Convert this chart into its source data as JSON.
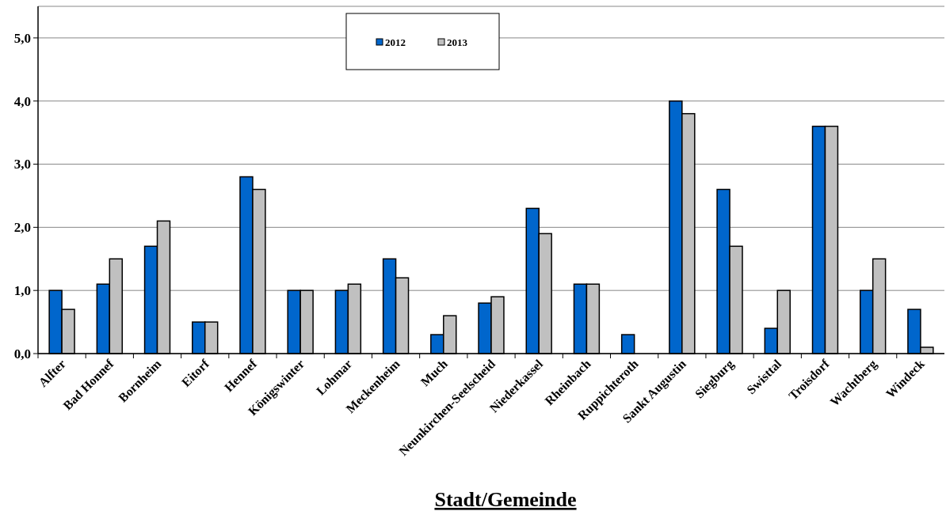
{
  "chart_data": {
    "type": "bar",
    "xlabel": "Stadt/Gemeinde",
    "categories": [
      "Alfter",
      "Bad Honnef",
      "Bornheim",
      "Eitorf",
      "Hennef",
      "Königswinter",
      "Lohmar",
      "Meckenheim",
      "Much",
      "Neunkirchen-Seelscheid",
      "Niederkassel",
      "Rheinbach",
      "Ruppichteroth",
      "Sankt Augustin",
      "Siegburg",
      "Swisttal",
      "Troisdorf",
      "Wachtberg",
      "Windeck"
    ],
    "series": [
      {
        "name": "2012",
        "color": "#0066cc",
        "values": [
          1.0,
          1.1,
          1.7,
          0.5,
          2.8,
          1.0,
          1.0,
          1.5,
          0.3,
          0.8,
          2.3,
          1.1,
          0.3,
          4.0,
          2.6,
          0.4,
          3.6,
          1.0,
          0.7
        ]
      },
      {
        "name": "2013",
        "color": "#c0c0c0",
        "values": [
          0.7,
          1.5,
          2.1,
          0.5,
          2.6,
          1.0,
          1.1,
          1.2,
          0.6,
          0.9,
          1.9,
          1.1,
          0,
          3.8,
          1.7,
          1.0,
          3.6,
          1.5,
          0.1
        ]
      }
    ],
    "ylim": [
      0,
      5.5
    ],
    "yticks": [
      {
        "value": 0,
        "label": "0,0"
      },
      {
        "value": 1,
        "label": "1,0"
      },
      {
        "value": 2,
        "label": "2,0"
      },
      {
        "value": 3,
        "label": "3,0"
      },
      {
        "value": 4,
        "label": "4,0"
      },
      {
        "value": 5,
        "label": "5,0"
      }
    ],
    "grid": "y",
    "legend": "top"
  }
}
